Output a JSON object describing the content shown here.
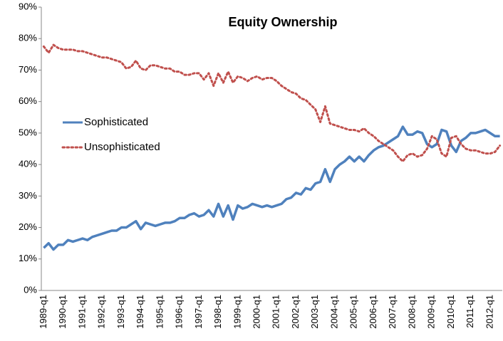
{
  "chart_data": {
    "type": "line",
    "title": "Equity Ownership",
    "categories": [
      "1989-q1",
      null,
      null,
      null,
      "1990-q1",
      null,
      null,
      null,
      "1991-q1",
      null,
      null,
      null,
      "1992-q1",
      null,
      null,
      null,
      "1993-q1",
      null,
      null,
      null,
      "1994-q1",
      null,
      null,
      null,
      "1995-q1",
      null,
      null,
      null,
      "1996-q1",
      null,
      null,
      null,
      "1997-q1",
      null,
      null,
      null,
      "1998-q1",
      null,
      null,
      null,
      "1999-q1",
      null,
      null,
      null,
      "2000-q1",
      null,
      null,
      null,
      "2001-q1",
      null,
      null,
      null,
      "2002-q1",
      null,
      null,
      null,
      "2003-q1",
      null,
      null,
      null,
      "2004-q1",
      null,
      null,
      null,
      "2005-q1",
      null,
      null,
      null,
      "2006-q1",
      null,
      null,
      null,
      "2007-q1",
      null,
      null,
      null,
      "2008-q1",
      null,
      null,
      null,
      "2009-q1",
      null,
      null,
      null,
      "2010-q1",
      null,
      null,
      null,
      "2011-q1",
      null,
      null,
      null,
      "2012-q1",
      null,
      null
    ],
    "series": [
      {
        "name": "Sophisticated",
        "color": "#4f81bd",
        "style": "solid",
        "values": [
          13.5,
          15,
          13,
          14.5,
          14.5,
          16,
          15.5,
          16,
          16.5,
          16,
          17,
          17.5,
          18,
          18.5,
          19,
          19,
          20,
          20,
          21,
          22,
          19.5,
          21.5,
          21,
          20.5,
          21,
          21.5,
          21.5,
          22,
          23,
          23,
          24,
          24.5,
          23.5,
          24,
          25.5,
          23.5,
          27.5,
          23.5,
          27,
          22.5,
          27,
          26,
          26.5,
          27.5,
          27,
          26.5,
          27,
          26.5,
          27,
          27.5,
          29,
          29.5,
          31,
          30.5,
          32.5,
          32,
          34,
          34.5,
          38.5,
          34.5,
          38.5,
          40,
          41,
          42.5,
          41,
          42.5,
          41,
          43,
          44.5,
          45.5,
          46,
          47,
          48,
          49,
          52,
          49.5,
          49.5,
          50.5,
          50,
          46.5,
          45.5,
          46.5,
          51,
          50.5,
          46,
          44,
          47.5,
          48.5,
          50,
          50,
          50.5,
          51,
          50,
          49,
          49
        ]
      },
      {
        "name": "Unsophisticated",
        "color": "#c0504d",
        "style": "dotted",
        "values": [
          77.5,
          75.5,
          78,
          77,
          76.5,
          76.5,
          76.5,
          76,
          76,
          75.5,
          75,
          74.5,
          74,
          74,
          73.5,
          73,
          72.5,
          70.5,
          71,
          73,
          70.5,
          70,
          71.5,
          71.5,
          71,
          70.5,
          70.5,
          69.5,
          69.5,
          68.5,
          68.5,
          69,
          69,
          67,
          69,
          65,
          69,
          66,
          69.5,
          66,
          68,
          67.5,
          66.5,
          67.5,
          68,
          67,
          67.5,
          67.5,
          66.5,
          65,
          64,
          63,
          62.5,
          61,
          60.5,
          59,
          57.5,
          53.5,
          58.5,
          53,
          52.5,
          52,
          51.5,
          51,
          51,
          50.5,
          51.5,
          50,
          49,
          47.5,
          46.5,
          45.5,
          44.5,
          42.5,
          41,
          43,
          43.5,
          42.5,
          43,
          45,
          49,
          48,
          43.5,
          42.5,
          48.5,
          49,
          46.5,
          45,
          44.5,
          44.5,
          44,
          43.5,
          43.5,
          44,
          46
        ]
      }
    ],
    "ylim": [
      0,
      90
    ],
    "yticks": [
      {
        "value": 0,
        "label": "0%"
      },
      {
        "value": 10,
        "label": "10%"
      },
      {
        "value": 20,
        "label": "20%"
      },
      {
        "value": 30,
        "label": "30%"
      },
      {
        "value": 40,
        "label": "40%"
      },
      {
        "value": 50,
        "label": "50%"
      },
      {
        "value": 60,
        "label": "60%"
      },
      {
        "value": 70,
        "label": "70%"
      },
      {
        "value": 80,
        "label": "80%"
      },
      {
        "value": 90,
        "label": "90%"
      }
    ],
    "grid": false,
    "legend": "left"
  }
}
